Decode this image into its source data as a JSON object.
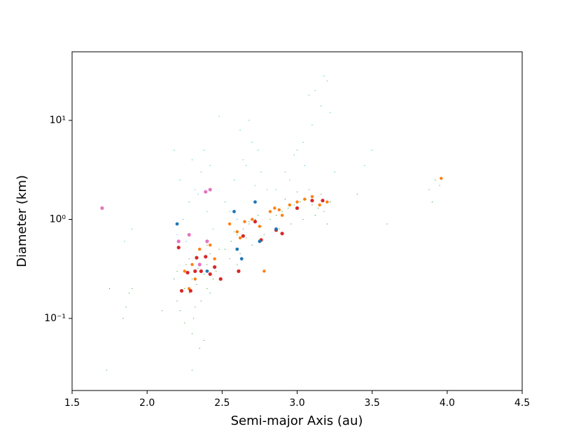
{
  "chart_data": {
    "type": "scatter",
    "xlabel": "Semi-major Axis (au)",
    "ylabel": "Diameter (km)",
    "xlim": [
      1.5,
      4.5
    ],
    "xticks": [
      1.5,
      {
        "value": 2,
        "label": "2.0"
      },
      2.5,
      {
        "value": 3,
        "label": "3.0"
      },
      3.5,
      {
        "value": 4,
        "label": "4.0"
      },
      4.5
    ],
    "ylim": [
      0.0187,
      49.3
    ],
    "yscale": "log",
    "yticks": [
      {
        "value": 0.1,
        "label": "10⁻¹"
      },
      {
        "value": 1,
        "label": "10⁰"
      },
      {
        "value": 10,
        "label": "10¹"
      }
    ],
    "series": [
      {
        "color": "#2ca02c",
        "x": [
          2.2,
          2.25,
          2.3,
          2.35,
          2.4,
          2.45,
          2.22,
          2.28,
          2.33,
          2.38,
          2.42,
          2.48,
          2.2,
          2.26,
          2.31,
          2.36,
          2.4,
          2.44,
          2.3,
          2.35,
          2.38,
          2.25,
          2.32,
          2.4,
          2.18,
          2.28,
          2.34,
          2.42,
          2.46,
          2.3,
          2.52,
          2.56,
          2.6,
          2.64,
          2.68,
          2.72,
          2.76,
          2.55,
          2.62,
          2.7,
          2.58,
          2.66,
          2.74,
          2.78,
          2.6,
          2.68,
          2.82,
          2.86,
          2.9,
          2.94,
          2.98,
          3.02,
          3.06,
          3.1,
          3.14,
          3.18,
          3.22,
          2.88,
          2.96,
          3.04,
          3.12,
          3.2,
          2.92,
          3.0,
          3.08,
          3.16,
          1.86,
          1.88,
          1.9,
          1.84,
          3.88,
          3.92,
          3.9,
          3.95,
          1.75,
          2.1,
          3.4,
          3.6,
          1.73
        ],
        "values": [
          0.15,
          0.2,
          0.25,
          0.3,
          0.35,
          0.4,
          0.12,
          0.18,
          0.22,
          0.28,
          0.45,
          0.5,
          0.3,
          0.35,
          0.1,
          0.15,
          0.2,
          0.25,
          0.07,
          0.05,
          0.06,
          0.09,
          0.13,
          0.55,
          0.25,
          0.4,
          0.32,
          0.18,
          0.3,
          0.03,
          0.5,
          0.6,
          0.7,
          0.8,
          0.9,
          1.0,
          0.85,
          0.4,
          0.45,
          0.55,
          0.75,
          0.65,
          1.1,
          0.7,
          0.35,
          0.95,
          1.0,
          1.1,
          1.2,
          1.3,
          1.4,
          1.5,
          1.6,
          1.4,
          1.3,
          1.2,
          1.5,
          0.8,
          0.9,
          1.0,
          1.1,
          0.9,
          1.6,
          1.9,
          2.0,
          1.8,
          0.13,
          0.18,
          0.2,
          0.1,
          2.0,
          2.5,
          1.5,
          2.2,
          0.2,
          0.12,
          1.8,
          0.9,
          0.03
        ]
      },
      {
        "color": "#17becf",
        "x": [
          2.2,
          2.24,
          2.28,
          2.32,
          2.36,
          2.4,
          2.44,
          2.22,
          2.3,
          2.38,
          2.26,
          2.34,
          2.42,
          2.52,
          2.58,
          2.64,
          2.7,
          2.76,
          2.8,
          2.55,
          2.62,
          2.68,
          2.74,
          2.6,
          2.66,
          2.72,
          2.86,
          2.92,
          2.98,
          3.04,
          3.1,
          3.16,
          3.2,
          2.95,
          3.05,
          3.12,
          3.18,
          3.22,
          3.08,
          3.0,
          2.48,
          3.5,
          3.45,
          2.18,
          1.9,
          1.85,
          3.25
        ],
        "values": [
          0.7,
          1.0,
          1.5,
          2.0,
          3.0,
          1.2,
          0.8,
          2.5,
          4.0,
          5.0,
          0.6,
          1.8,
          3.5,
          1.5,
          2.5,
          4.0,
          6.0,
          3.0,
          2.0,
          1.2,
          8.0,
          10.0,
          5.0,
          1.0,
          3.5,
          2.2,
          2.0,
          3.0,
          4.5,
          6.0,
          9.0,
          14.0,
          25.0,
          2.5,
          3.5,
          20.0,
          28.0,
          12.0,
          18.0,
          5.0,
          11.0,
          5.0,
          3.5,
          5.0,
          0.8,
          0.6,
          3.0
        ]
      },
      {
        "color": "#ff7f0e",
        "x": [
          2.25,
          2.3,
          2.35,
          2.42,
          2.45,
          2.28,
          2.55,
          2.6,
          2.65,
          2.7,
          2.75,
          2.78,
          2.82,
          2.85,
          2.9,
          2.95,
          3.0,
          3.05,
          3.1,
          3.15,
          3.2,
          3.96,
          2.62,
          2.32,
          2.88
        ],
        "values": [
          0.3,
          0.35,
          0.5,
          0.55,
          0.4,
          0.2,
          0.9,
          0.75,
          0.95,
          1.0,
          0.85,
          0.3,
          1.2,
          1.3,
          1.1,
          1.4,
          1.5,
          1.6,
          1.7,
          1.4,
          1.5,
          2.6,
          0.65,
          0.25,
          1.25
        ]
      },
      {
        "color": "#d62728",
        "x": [
          2.21,
          2.23,
          2.29,
          2.33,
          2.36,
          2.39,
          2.42,
          2.45,
          2.49,
          2.27,
          2.61,
          2.64,
          2.72,
          2.76,
          2.86,
          2.9,
          3.0,
          3.1,
          3.17,
          2.32
        ],
        "values": [
          0.52,
          0.19,
          0.19,
          0.41,
          0.3,
          0.42,
          0.28,
          0.33,
          0.25,
          0.29,
          0.3,
          0.68,
          0.95,
          0.62,
          0.78,
          0.72,
          1.3,
          1.55,
          1.55,
          0.3
        ]
      },
      {
        "color": "#1f77b4",
        "x": [
          2.2,
          2.58,
          2.6,
          2.63,
          2.72,
          2.86,
          2.4,
          2.75
        ],
        "values": [
          0.9,
          1.2,
          0.5,
          0.4,
          1.5,
          0.8,
          0.3,
          0.6
        ]
      },
      {
        "color": "#e377c2",
        "x": [
          1.7,
          2.21,
          2.28,
          2.39,
          2.42,
          2.4,
          2.35
        ],
        "values": [
          1.3,
          0.6,
          0.7,
          1.9,
          2.0,
          0.6,
          0.35
        ]
      }
    ]
  }
}
